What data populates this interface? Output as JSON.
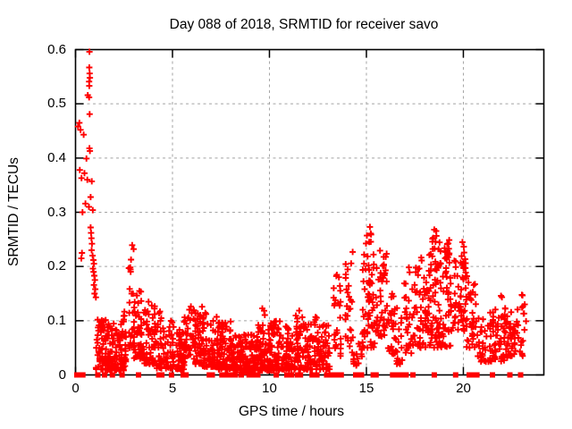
{
  "window": {
    "background": "#ffffff"
  },
  "chart_data": {
    "type": "scatter",
    "title": "Day 088 of 2018, SRMTID for receiver savo",
    "xlabel": "GPS time / hours",
    "ylabel": "SRMTID / TECUs",
    "xlim": [
      0,
      24.15
    ],
    "ylim": [
      0,
      0.6
    ],
    "xticks": [
      0,
      5,
      10,
      15,
      20
    ],
    "yticks": [
      0,
      0.1,
      0.2,
      0.3,
      0.4,
      0.5,
      0.6
    ],
    "ytick_labels": [
      "0",
      "0.1",
      "0.2",
      "0.3",
      "0.4",
      "0.5",
      "0.6"
    ],
    "grid": true,
    "legend": "none",
    "marker": "plus",
    "zero_marker": "filled-square",
    "marker_color": "#ff0000",
    "grid_color": "#a4a4a4",
    "frame_color": "#000000",
    "seed": 20180088,
    "high_points": [
      [
        0.72,
        0.596
      ],
      [
        0.71,
        0.567
      ],
      [
        0.73,
        0.556
      ],
      [
        0.74,
        0.548
      ],
      [
        0.7,
        0.541
      ],
      [
        0.71,
        0.533
      ],
      [
        0.63,
        0.516
      ],
      [
        0.7,
        0.512
      ],
      [
        0.73,
        0.481
      ],
      [
        0.2,
        0.465
      ],
      [
        0.13,
        0.458
      ],
      [
        0.26,
        0.452
      ],
      [
        0.42,
        0.443
      ],
      [
        0.72,
        0.418
      ],
      [
        0.74,
        0.413
      ],
      [
        0.56,
        0.399
      ],
      [
        0.22,
        0.378
      ],
      [
        0.46,
        0.372
      ],
      [
        0.31,
        0.363
      ],
      [
        0.61,
        0.36
      ],
      [
        0.84,
        0.357
      ],
      [
        0.78,
        0.328
      ],
      [
        0.51,
        0.316
      ],
      [
        0.69,
        0.31
      ],
      [
        0.89,
        0.304
      ],
      [
        0.36,
        0.3
      ],
      [
        0.78,
        0.272
      ],
      [
        0.8,
        0.262
      ],
      [
        0.82,
        0.252
      ],
      [
        0.85,
        0.242
      ],
      [
        0.83,
        0.23
      ],
      [
        0.33,
        0.225
      ],
      [
        0.88,
        0.22
      ],
      [
        0.3,
        0.215
      ],
      [
        0.92,
        0.212
      ],
      [
        0.95,
        0.205
      ],
      [
        0.9,
        0.196
      ],
      [
        0.93,
        0.19
      ],
      [
        0.97,
        0.183
      ],
      [
        1.0,
        0.175
      ],
      [
        0.95,
        0.166
      ],
      [
        1.02,
        0.158
      ],
      [
        0.98,
        0.15
      ],
      [
        1.05,
        0.143
      ],
      [
        15.18,
        0.273
      ],
      [
        18.5,
        0.268
      ],
      [
        19.95,
        0.245
      ]
    ],
    "clusters": [
      [
        1.05,
        1.6,
        0.01,
        0.11,
        60,
        1.6
      ],
      [
        1.6,
        2.6,
        0.008,
        0.1,
        115,
        1.7
      ],
      [
        2.35,
        2.58,
        0.095,
        0.125,
        6,
        1.0
      ],
      [
        2.75,
        3.05,
        0.05,
        0.255,
        28,
        1.2
      ],
      [
        3.0,
        3.55,
        0.03,
        0.155,
        48,
        1.5
      ],
      [
        3.55,
        4.15,
        0.02,
        0.135,
        55,
        1.7
      ],
      [
        4.15,
        5.1,
        0.012,
        0.1,
        68,
        1.8
      ],
      [
        4.3,
        4.5,
        0.1,
        0.118,
        3,
        1.0
      ],
      [
        5.1,
        5.65,
        0.01,
        0.085,
        48,
        1.6
      ],
      [
        5.6,
        6.0,
        0.03,
        0.135,
        26,
        1.4
      ],
      [
        6.0,
        6.55,
        0.02,
        0.13,
        58,
        1.6
      ],
      [
        6.55,
        7.3,
        0.015,
        0.115,
        72,
        1.8
      ],
      [
        7.3,
        8.05,
        0.01,
        0.1,
        78,
        1.7
      ],
      [
        8.05,
        9.35,
        0.005,
        0.075,
        135,
        1.5
      ],
      [
        9.35,
        10.55,
        0.008,
        0.1,
        135,
        1.7
      ],
      [
        9.6,
        9.85,
        0.1,
        0.135,
        3,
        1.0
      ],
      [
        10.55,
        11.75,
        0.01,
        0.09,
        105,
        1.7
      ],
      [
        11.3,
        11.75,
        0.09,
        0.12,
        5,
        1.0
      ],
      [
        11.75,
        13.1,
        0.01,
        0.095,
        112,
        1.6
      ],
      [
        12.2,
        12.5,
        0.09,
        0.112,
        4,
        1.0
      ],
      [
        13.3,
        13.7,
        0.03,
        0.185,
        27,
        1.3
      ],
      [
        13.9,
        14.3,
        0.04,
        0.235,
        27,
        1.2
      ],
      [
        14.3,
        14.8,
        0.015,
        0.06,
        16,
        1.3
      ],
      [
        14.8,
        15.45,
        0.05,
        0.255,
        62,
        1.4
      ],
      [
        15.0,
        15.35,
        0.255,
        0.285,
        3,
        1.0
      ],
      [
        15.45,
        16.05,
        0.07,
        0.235,
        46,
        1.3
      ],
      [
        16.05,
        16.45,
        0.035,
        0.15,
        26,
        1.4
      ],
      [
        16.45,
        16.95,
        0.02,
        0.125,
        22,
        1.5
      ],
      [
        16.95,
        17.45,
        0.04,
        0.21,
        33,
        1.4
      ],
      [
        17.45,
        18.15,
        0.05,
        0.225,
        52,
        1.4
      ],
      [
        18.15,
        19.35,
        0.05,
        0.245,
        118,
        1.4
      ],
      [
        18.4,
        18.62,
        0.23,
        0.272,
        7,
        1.0
      ],
      [
        19.1,
        19.3,
        0.21,
        0.258,
        6,
        1.0
      ],
      [
        19.35,
        20.2,
        0.08,
        0.215,
        56,
        1.3
      ],
      [
        19.9,
        20.15,
        0.17,
        0.247,
        8,
        1.0
      ],
      [
        20.15,
        20.65,
        0.05,
        0.175,
        30,
        1.4
      ],
      [
        20.65,
        21.35,
        0.02,
        0.105,
        28,
        1.5
      ],
      [
        21.35,
        22.65,
        0.025,
        0.125,
        96,
        1.6
      ],
      [
        21.85,
        22.0,
        0.13,
        0.148,
        2,
        1.0
      ],
      [
        22.65,
        23.25,
        0.035,
        0.148,
        26,
        1.4
      ]
    ],
    "zero_flag_x": [
      0.07,
      0.22,
      0.38,
      1.15,
      1.5,
      1.9,
      2.4,
      3.25,
      4.3,
      4.45,
      4.95,
      5.55,
      5.7,
      6.9,
      7.05,
      7.55,
      7.8,
      7.95,
      8.1,
      8.25,
      8.55,
      8.95,
      9.1,
      9.25,
      9.4,
      10.35,
      10.9,
      11.0,
      11.15,
      11.45,
      11.6,
      12.2,
      12.3,
      12.45,
      12.95,
      13.1,
      13.2,
      13.3,
      13.4,
      13.5,
      13.6,
      13.7,
      14.45,
      14.6,
      14.75,
      15.35,
      15.5,
      16.35,
      16.5,
      16.75,
      16.9,
      17.05,
      17.4,
      18.5,
      19.6,
      20.3,
      20.45,
      20.7,
      21.5,
      22.4,
      22.95
    ]
  }
}
